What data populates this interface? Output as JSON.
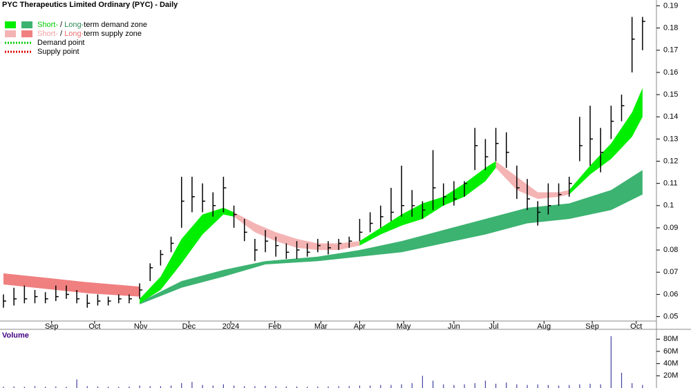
{
  "chart_data": {
    "type": "ohlc",
    "title": "PYC Therapeutics Limited Ordinary (PYC) - Daily",
    "x": [
      0,
      1,
      2,
      3,
      4,
      5,
      6,
      7,
      8,
      9,
      10,
      11,
      12,
      13,
      14,
      15,
      16,
      17,
      18,
      19,
      20,
      21,
      22,
      23,
      24,
      25,
      26,
      27,
      28,
      29,
      30,
      31,
      32,
      33,
      34,
      35,
      36,
      37,
      38,
      39,
      40,
      41,
      42,
      43,
      44,
      45,
      46,
      47,
      48,
      49,
      50,
      51,
      52,
      53,
      54,
      55,
      56,
      57,
      58,
      59,
      60,
      61
    ],
    "high": [
      0.06,
      0.063,
      0.064,
      0.062,
      0.061,
      0.064,
      0.064,
      0.062,
      0.06,
      0.06,
      0.059,
      0.06,
      0.06,
      0.065,
      0.074,
      0.08,
      0.086,
      0.113,
      0.113,
      0.11,
      0.106,
      0.113,
      0.1,
      0.094,
      0.085,
      0.089,
      0.086,
      0.083,
      0.084,
      0.083,
      0.085,
      0.084,
      0.085,
      0.086,
      0.094,
      0.097,
      0.1,
      0.108,
      0.118,
      0.107,
      0.102,
      0.125,
      0.11,
      0.111,
      0.111,
      0.135,
      0.13,
      0.135,
      0.133,
      0.118,
      0.112,
      0.102,
      0.11,
      0.11,
      0.113,
      0.14,
      0.145,
      0.135,
      0.145,
      0.15,
      0.185,
      0.185
    ],
    "low": [
      0.054,
      0.055,
      0.056,
      0.056,
      0.056,
      0.057,
      0.058,
      0.056,
      0.054,
      0.055,
      0.055,
      0.056,
      0.056,
      0.058,
      0.066,
      0.073,
      0.079,
      0.09,
      0.097,
      0.097,
      0.095,
      0.097,
      0.09,
      0.084,
      0.075,
      0.079,
      0.077,
      0.076,
      0.076,
      0.077,
      0.079,
      0.078,
      0.08,
      0.081,
      0.084,
      0.088,
      0.09,
      0.093,
      0.095,
      0.095,
      0.094,
      0.098,
      0.1,
      0.1,
      0.104,
      0.116,
      0.116,
      0.12,
      0.117,
      0.103,
      0.098,
      0.091,
      0.096,
      0.1,
      0.104,
      0.12,
      0.118,
      0.115,
      0.13,
      0.138,
      0.16,
      0.17
    ],
    "close": [
      0.057,
      0.058,
      0.058,
      0.059,
      0.058,
      0.059,
      0.06,
      0.058,
      0.056,
      0.057,
      0.057,
      0.058,
      0.058,
      0.062,
      0.072,
      0.078,
      0.083,
      0.102,
      0.104,
      0.102,
      0.1,
      0.108,
      0.096,
      0.088,
      0.08,
      0.084,
      0.082,
      0.079,
      0.08,
      0.079,
      0.082,
      0.081,
      0.083,
      0.084,
      0.088,
      0.092,
      0.095,
      0.097,
      0.1,
      0.1,
      0.098,
      0.108,
      0.104,
      0.103,
      0.11,
      0.127,
      0.122,
      0.128,
      0.124,
      0.108,
      0.103,
      0.097,
      0.1,
      0.105,
      0.11,
      0.127,
      0.13,
      0.124,
      0.138,
      0.145,
      0.175,
      0.183
    ],
    "xlim": [
      0,
      62
    ],
    "xticks": [
      {
        "value": 4.6,
        "label": "Sep"
      },
      {
        "value": 8.7,
        "label": "Oct"
      },
      {
        "value": 13.1,
        "label": "Nov"
      },
      {
        "value": 17.7,
        "label": "Dec"
      },
      {
        "value": 21.7,
        "label": "2024"
      },
      {
        "value": 25.9,
        "label": "Feb"
      },
      {
        "value": 30.3,
        "label": "Mar"
      },
      {
        "value": 34,
        "label": "Apr"
      },
      {
        "value": 38.2,
        "label": "May"
      },
      {
        "value": 43,
        "label": "Jun"
      },
      {
        "value": 46.8,
        "label": "Jul"
      },
      {
        "value": 51.6,
        "label": "Aug"
      },
      {
        "value": 56.2,
        "label": "Sep"
      },
      {
        "value": 60.4,
        "label": "Oct"
      }
    ],
    "ylim": [
      0.048,
      0.192
    ],
    "yticks": [
      0.05,
      0.06,
      0.07,
      0.08,
      0.09,
      0.1,
      0.11,
      0.12,
      0.13,
      0.14,
      0.15,
      0.16,
      0.17,
      0.18,
      0.19
    ],
    "zones": [
      {
        "color": "#f08080",
        "x": [
          0,
          4,
          8,
          13
        ],
        "upper": [
          0.0695,
          0.0675,
          0.0655,
          0.0635
        ],
        "lower": [
          0.0645,
          0.0625,
          0.0605,
          0.059
        ]
      },
      {
        "color": "#3cb371",
        "x": [
          13,
          17,
          21,
          25,
          30,
          34,
          38,
          42,
          46,
          50,
          54,
          58,
          61
        ],
        "upper": [
          0.0565,
          0.066,
          0.071,
          0.075,
          0.077,
          0.08,
          0.084,
          0.089,
          0.094,
          0.099,
          0.101,
          0.107,
          0.116
        ],
        "lower": [
          0.0555,
          0.063,
          0.068,
          0.0735,
          0.075,
          0.077,
          0.079,
          0.083,
          0.087,
          0.092,
          0.094,
          0.098,
          0.105
        ]
      },
      {
        "color": "#00ee00",
        "x": [
          13,
          15,
          17,
          19,
          21,
          22
        ],
        "upper": [
          0.058,
          0.068,
          0.085,
          0.096,
          0.099,
          0.097
        ],
        "lower": [
          0.056,
          0.062,
          0.074,
          0.087,
          0.096,
          0.095
        ]
      },
      {
        "color": "#f4b4b4",
        "x": [
          22,
          24,
          26,
          28,
          30,
          32,
          34
        ],
        "upper": [
          0.097,
          0.092,
          0.088,
          0.085,
          0.083,
          0.083,
          0.084
        ],
        "lower": [
          0.095,
          0.088,
          0.084,
          0.081,
          0.08,
          0.08,
          0.082
        ]
      },
      {
        "color": "#00ee00",
        "x": [
          34,
          36,
          38,
          40,
          42,
          44,
          46,
          47
        ],
        "upper": [
          0.084,
          0.09,
          0.096,
          0.101,
          0.104,
          0.11,
          0.117,
          0.12
        ],
        "lower": [
          0.082,
          0.087,
          0.091,
          0.094,
          0.1,
          0.104,
          0.111,
          0.117
        ]
      },
      {
        "color": "#f4b4b4",
        "x": [
          47,
          49,
          51,
          53,
          54
        ],
        "upper": [
          0.12,
          0.113,
          0.106,
          0.106,
          0.107
        ],
        "lower": [
          0.117,
          0.107,
          0.103,
          0.104,
          0.105
        ]
      },
      {
        "color": "#00ee00",
        "x": [
          54,
          56,
          58,
          60,
          61
        ],
        "upper": [
          0.107,
          0.118,
          0.128,
          0.142,
          0.153
        ],
        "lower": [
          0.105,
          0.114,
          0.121,
          0.131,
          0.14
        ]
      }
    ],
    "legend": [
      {
        "swatches": [
          "#00ee00",
          "#3cb371"
        ],
        "parts": [
          {
            "text": "Short-",
            "color": "#00cc00"
          },
          {
            "text": " / ",
            "color": "#000000"
          },
          {
            "text": "Long-",
            "color": "#2e8b57"
          },
          {
            "text": "term demand zone",
            "color": "#000000"
          }
        ]
      },
      {
        "swatches": [
          "#f4b4b4",
          "#f08080"
        ],
        "parts": [
          {
            "text": "Short-",
            "color": "#f4a0a0"
          },
          {
            "text": " / ",
            "color": "#000000"
          },
          {
            "text": "Long-",
            "color": "#f07070"
          },
          {
            "text": "term supply zone",
            "color": "#000000"
          }
        ]
      },
      {
        "dotted": "#00cc00",
        "parts": [
          {
            "text": "Demand point",
            "color": "#000000"
          }
        ]
      },
      {
        "dotted": "#dd0000",
        "parts": [
          {
            "text": "Supply point",
            "color": "#000000"
          }
        ]
      }
    ],
    "volume": {
      "title": "Volume",
      "color": "#4040a0",
      "values": [
        2000000,
        2500000,
        2000000,
        3000000,
        2000000,
        2500000,
        2000000,
        14000000,
        3000000,
        2500000,
        2000000,
        2000000,
        2500000,
        4000000,
        3000000,
        3000000,
        4000000,
        8000000,
        10000000,
        5000000,
        4000000,
        6000000,
        4000000,
        3000000,
        3000000,
        3500000,
        3000000,
        2500000,
        2500000,
        2000000,
        2500000,
        2500000,
        3000000,
        3000000,
        4000000,
        4000000,
        5000000,
        5000000,
        6000000,
        8000000,
        20000000,
        12000000,
        6000000,
        5000000,
        6000000,
        8000000,
        12000000,
        7000000,
        9000000,
        6000000,
        5000000,
        6000000,
        5000000,
        4000000,
        5000000,
        6000000,
        7000000,
        6000000,
        85000000,
        25000000,
        8000000,
        5000000
      ],
      "ylim": [
        0,
        95000000
      ],
      "yticks": [
        {
          "value": 20000000,
          "label": "20M"
        },
        {
          "value": 40000000,
          "label": "40M"
        },
        {
          "value": 60000000,
          "label": "60M"
        },
        {
          "value": 80000000,
          "label": "80M"
        }
      ]
    }
  }
}
